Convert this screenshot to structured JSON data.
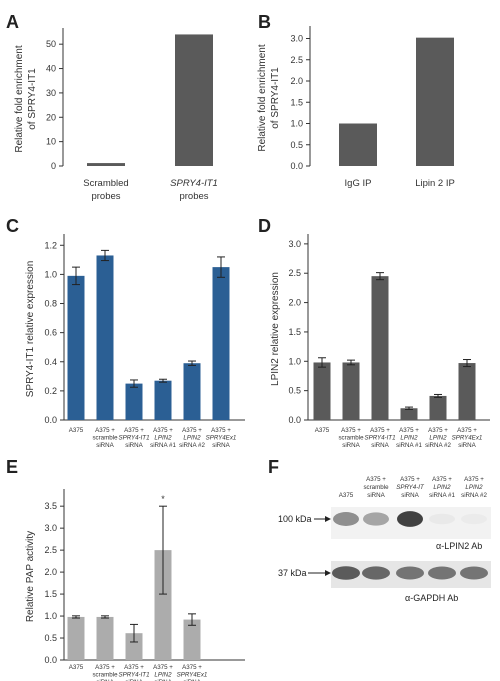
{
  "chart_data": [
    {
      "panel": "A",
      "type": "bar",
      "categories": [
        [
          "Scrambled",
          "probes"
        ],
        [
          "SPRY4-IT1",
          "probes"
        ]
      ],
      "category_italic": [
        false,
        true
      ],
      "values": [
        1.2,
        54
      ],
      "ylabel": [
        "Relative fold enrichment",
        "of SPRY4-IT1"
      ],
      "ylim": [
        0,
        55
      ],
      "yticks": [
        0,
        10,
        20,
        30,
        40,
        50
      ],
      "tick_decimals": 0,
      "color": "#5a5a5a"
    },
    {
      "panel": "B",
      "type": "bar",
      "categories": [
        [
          "IgG IP"
        ],
        [
          "Lipin 2 IP"
        ]
      ],
      "category_italic": [
        false,
        false
      ],
      "values": [
        1.0,
        3.02
      ],
      "ylabel": [
        "Relative fold enrichment",
        "of SPRY4-IT1"
      ],
      "ylim": [
        0,
        3.2
      ],
      "yticks": [
        0,
        0.5,
        1.0,
        1.5,
        2.0,
        2.5,
        3.0
      ],
      "tick_decimals": 1,
      "color": "#5a5a5a"
    },
    {
      "panel": "C",
      "type": "bar",
      "categories": [
        [
          "A375"
        ],
        [
          "A375 +",
          "scramble",
          "siRNA"
        ],
        [
          "A375 +",
          "SPRY4-IT1",
          "siRNA"
        ],
        [
          "A375 +",
          "LPIN2",
          "siRNA #1"
        ],
        [
          "A375 +",
          "LPIN2",
          "siRNA #2"
        ],
        [
          "A375 +",
          "SPRY4Ex1",
          "siRNA"
        ]
      ],
      "values": [
        0.99,
        1.13,
        0.25,
        0.27,
        0.39,
        1.05
      ],
      "errors": [
        0.06,
        0.035,
        0.025,
        0.01,
        0.015,
        0.07
      ],
      "ylabel": [
        "SPRY4-IT1 relative expression"
      ],
      "ylim": [
        0,
        1.25
      ],
      "yticks": [
        0,
        0.2,
        0.4,
        0.6,
        0.8,
        1.0,
        1.2
      ],
      "tick_decimals": 1,
      "color": "#2b5f94"
    },
    {
      "panel": "D",
      "type": "bar",
      "categories": [
        [
          "A375"
        ],
        [
          "A375 +",
          "scramble",
          "siRNA"
        ],
        [
          "A375 +",
          "SPRY4-IT1",
          "siRNA"
        ],
        [
          "A375 +",
          "LPIN2",
          "siRNA #1"
        ],
        [
          "A375 +",
          "LPIN2",
          "siRNA #2"
        ],
        [
          "A375 +",
          "SPRY4Ex1",
          "siRNA"
        ]
      ],
      "values": [
        0.98,
        0.98,
        2.45,
        0.2,
        0.41,
        0.97
      ],
      "errors": [
        0.08,
        0.04,
        0.06,
        0.02,
        0.025,
        0.06
      ],
      "ylabel": [
        "LPIN2 relative expression"
      ],
      "ylim": [
        0,
        3.1
      ],
      "yticks": [
        0,
        0.5,
        1.0,
        1.5,
        2.0,
        2.5,
        3.0
      ],
      "tick_decimals": 1,
      "color": "#5a5a5a"
    },
    {
      "panel": "E",
      "type": "bar",
      "categories": [
        [
          "A375"
        ],
        [
          "A375 +",
          "scramble",
          "siRNA"
        ],
        [
          "A375 +",
          "SPRY4-IT1",
          "siRNA"
        ],
        [
          "A375 +",
          "LPIN2",
          "siRNA"
        ],
        [
          "A375 +",
          "SPRY4Ex1",
          "siRNA"
        ]
      ],
      "values": [
        0.98,
        0.98,
        0.61,
        2.5,
        0.92
      ],
      "errors": [
        0.025,
        0.025,
        0.2,
        1.0,
        0.13
      ],
      "annotations": [
        {
          "index": 3,
          "text": "*"
        }
      ],
      "ylabel": [
        "Relative PAP activity"
      ],
      "ylim": [
        0,
        3.8
      ],
      "yticks": [
        0,
        0.5,
        1.0,
        1.5,
        2.0,
        2.5,
        3.0,
        3.5
      ],
      "tick_decimals": 1,
      "color": "#acacac"
    }
  ],
  "blot": {
    "panel": "F",
    "lanes": [
      [
        "A375"
      ],
      [
        "A375 +",
        "scramble",
        "siRNA"
      ],
      [
        "A375 +",
        "SPRY4-IT",
        "siRNA"
      ],
      [
        "A375 +",
        "LPIN2",
        "siRNA #1"
      ],
      [
        "A375 +",
        "LPIN2",
        "siRNA #2"
      ]
    ],
    "markers": [
      "100 kDa",
      "37 kDa"
    ],
    "antibodies": [
      "α-LPIN2 Ab",
      "α-GAPDH Ab"
    ],
    "lpin2_band_intensity": [
      0.65,
      0.55,
      0.95,
      0.08,
      0.06
    ],
    "gapdh_band_intensity": [
      0.85,
      0.8,
      0.75,
      0.75,
      0.75
    ]
  }
}
